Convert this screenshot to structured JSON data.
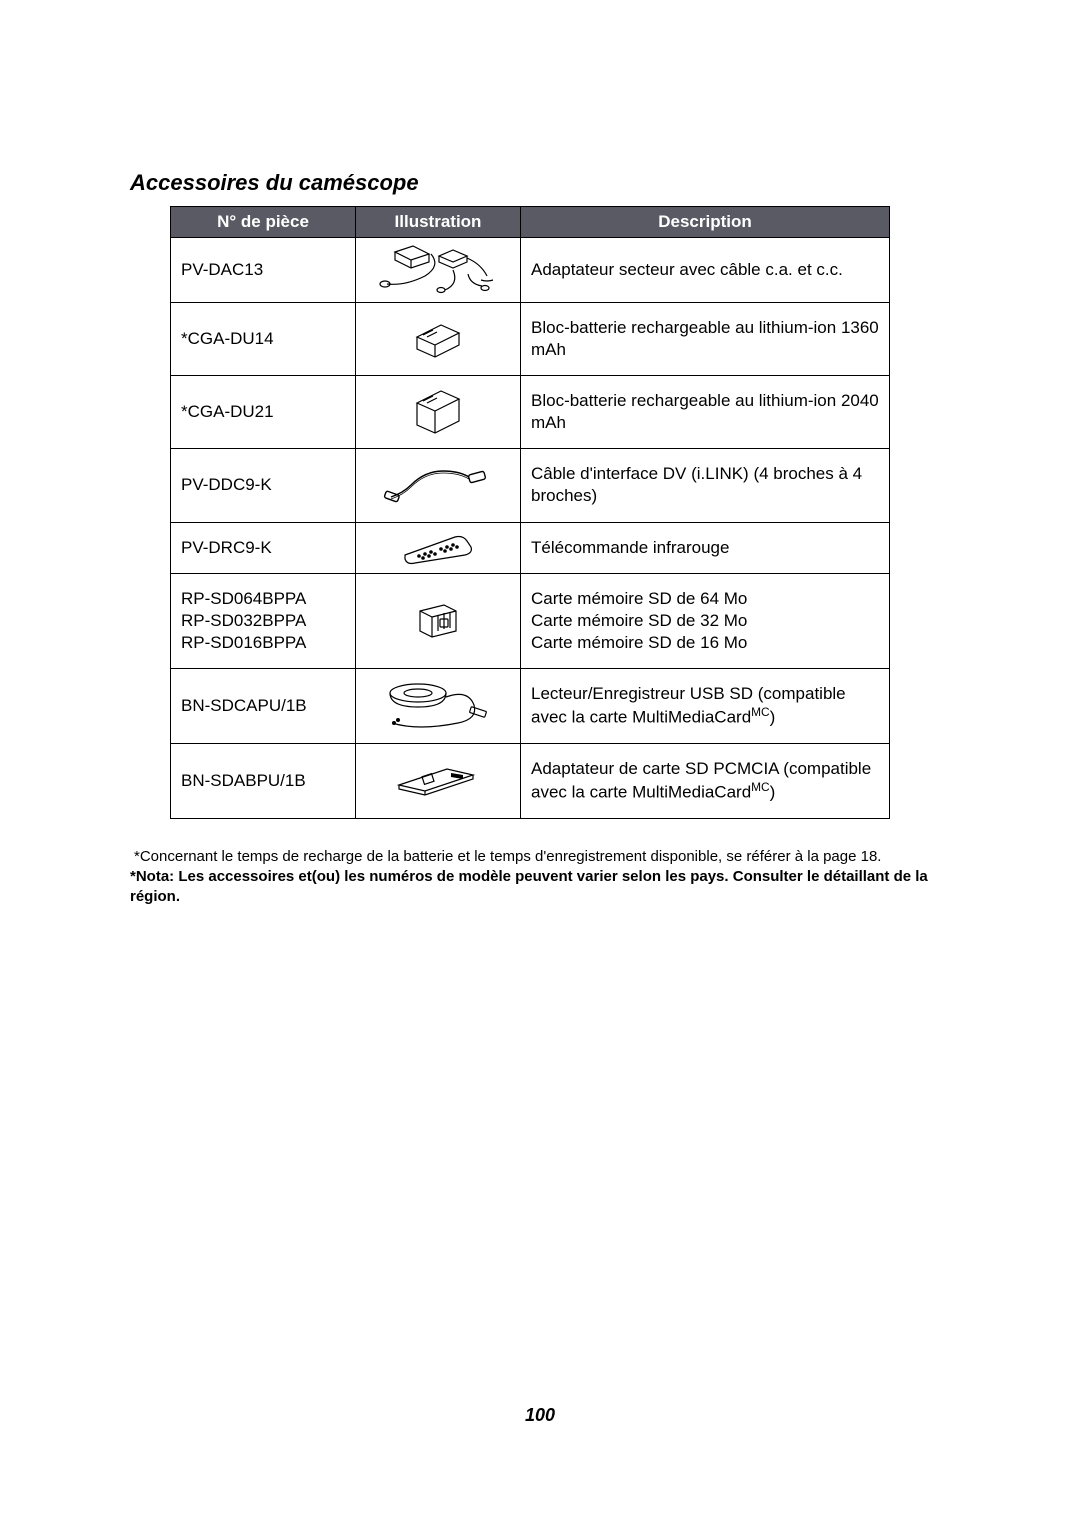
{
  "title": "Accessoires du caméscope",
  "headers": {
    "part": "N°  de pièce",
    "illus": "Illustration",
    "desc": "Description"
  },
  "rows": [
    {
      "part": "PV-DAC13",
      "desc": "Adaptateur secteur avec câble c.a. et c.c."
    },
    {
      "part": "*CGA-DU14",
      "desc": "Bloc-batterie rechargeable au lithium-ion 1360 mAh"
    },
    {
      "part": "*CGA-DU21",
      "desc": "Bloc-batterie rechargeable au lithium-ion 2040 mAh"
    },
    {
      "part": "PV-DDC9-K",
      "desc": "Câble d'interface DV (i.LINK) (4 broches à 4 broches)"
    },
    {
      "part": "PV-DRC9-K",
      "desc": "Télécommande infrarouge"
    },
    {
      "part": "RP-SD064BPPA\nRP-SD032BPPA\nRP-SD016BPPA",
      "desc": "Carte mémoire SD de 64 Mo\nCarte mémoire SD de 32 Mo\nCarte mémoire SD de 16 Mo"
    },
    {
      "part": "BN-SDCAPU/1B",
      "desc_html": "Lecteur/Enregistreur USB SD (compatible avec la carte MultiMediaCard<sup>MC</sup>)"
    },
    {
      "part": "BN-SDABPU/1B",
      "desc_html": "Adaptateur de carte SD PCMCIA (compatible avec la carte MultiMediaCard<sup>MC</sup>)"
    }
  ],
  "footnote1": "*Concernant le temps de recharge de la batterie et le temps d'enregistrement disponible, se référer à la page 18.",
  "footnote2": "*Nota: Les accessoires et(ou) les numéros de modèle peuvent varier selon les pays. Consulter le détaillant de la région.",
  "page_number": "100",
  "colors": {
    "header_bg": "#5a5a64",
    "header_text": "#ffffff",
    "border": "#000000",
    "text": "#000000",
    "background": "#ffffff"
  }
}
